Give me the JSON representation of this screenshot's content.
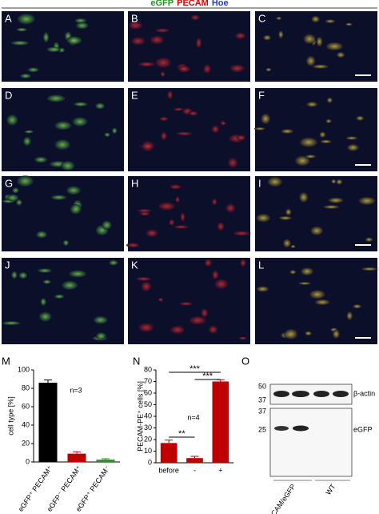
{
  "header": {
    "labels": [
      {
        "text": "eGFP",
        "color": "#1a9a1a"
      },
      {
        "text": "PECAM",
        "color": "#e00000"
      },
      {
        "text": "Hoe",
        "color": "#1f3fb0"
      }
    ]
  },
  "panels": [
    "A",
    "B",
    "C",
    "D",
    "E",
    "F",
    "G",
    "H",
    "I",
    "J",
    "K",
    "L"
  ],
  "chart_data": [
    {
      "type": "bar",
      "panel": "M",
      "ylabel": "cell type [%]",
      "annotation": "n=3",
      "categories": [
        "eGFP⁺ PECAM⁺",
        "eGFP⁻ PECAM⁺",
        "eGFP⁺ PECAM⁻"
      ],
      "values": [
        86,
        9,
        2.5
      ],
      "errors": [
        3,
        2,
        1
      ],
      "colors": [
        "#000000",
        "#c00000",
        "#2e8b2e"
      ],
      "ylim": [
        0,
        100
      ],
      "yticks": [
        0,
        20,
        40,
        60,
        80,
        100
      ]
    },
    {
      "type": "bar",
      "panel": "N",
      "ylabel": "PECAM-PE⁺ cells [%]",
      "annotation": "n=4",
      "categories": [
        "before",
        "-",
        "+"
      ],
      "values": [
        17,
        4,
        70
      ],
      "errors": [
        2.5,
        1.5,
        1.5
      ],
      "colors": [
        "#c00000",
        "#c00000",
        "#c00000"
      ],
      "ylim": [
        0,
        80
      ],
      "yticks": [
        0,
        10,
        20,
        30,
        40,
        50,
        60,
        70,
        80
      ],
      "significance": [
        "**",
        "***",
        "***"
      ]
    }
  ],
  "blot": {
    "panel": "O",
    "markers": [
      "50",
      "37",
      "37",
      "25"
    ],
    "bands": [
      "β-actin",
      "eGFP"
    ],
    "lanes": [
      "PECAM/eGFP",
      "WT"
    ]
  }
}
